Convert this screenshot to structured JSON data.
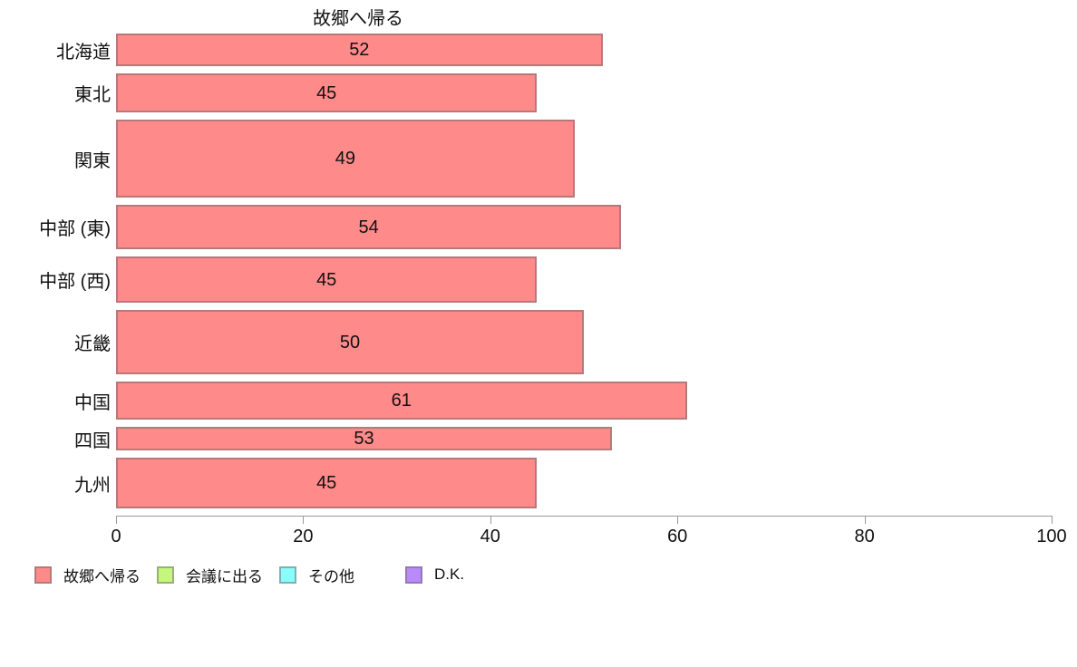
{
  "title": "故郷へ帰る",
  "chart_data": {
    "type": "bar",
    "orientation": "horizontal",
    "title": "故郷へ帰る",
    "categories": [
      "北海道",
      "東北",
      "関東",
      "中部 (東)",
      "中部 (西)",
      "近畿",
      "中国",
      "四国",
      "九州"
    ],
    "values": [
      52,
      45,
      49,
      54,
      45,
      50,
      61,
      53,
      45
    ],
    "bar_thickness_px": [
      36,
      43,
      86,
      49,
      51,
      71,
      42,
      26,
      56
    ],
    "value_labels_shown": true,
    "xlabel": "",
    "ylabel": "",
    "xlim": [
      0,
      100
    ],
    "x_ticks": [
      0,
      20,
      40,
      60,
      80,
      100
    ],
    "grid": false,
    "legend_position": "bottom",
    "legend": [
      {
        "label": "故郷へ帰る",
        "color": "#ff8a8a"
      },
      {
        "label": "会議に出る",
        "color": "#c6f77d"
      },
      {
        "label": "その他",
        "color": "#8afcfc"
      },
      {
        "label": "D.K.",
        "color": "#ba8afa"
      }
    ]
  },
  "colors": {
    "bar_fill": "#ff8a8a",
    "bar_border": "rgba(110,104,106,0.5)",
    "axis": "#999999",
    "text": "#111111"
  }
}
